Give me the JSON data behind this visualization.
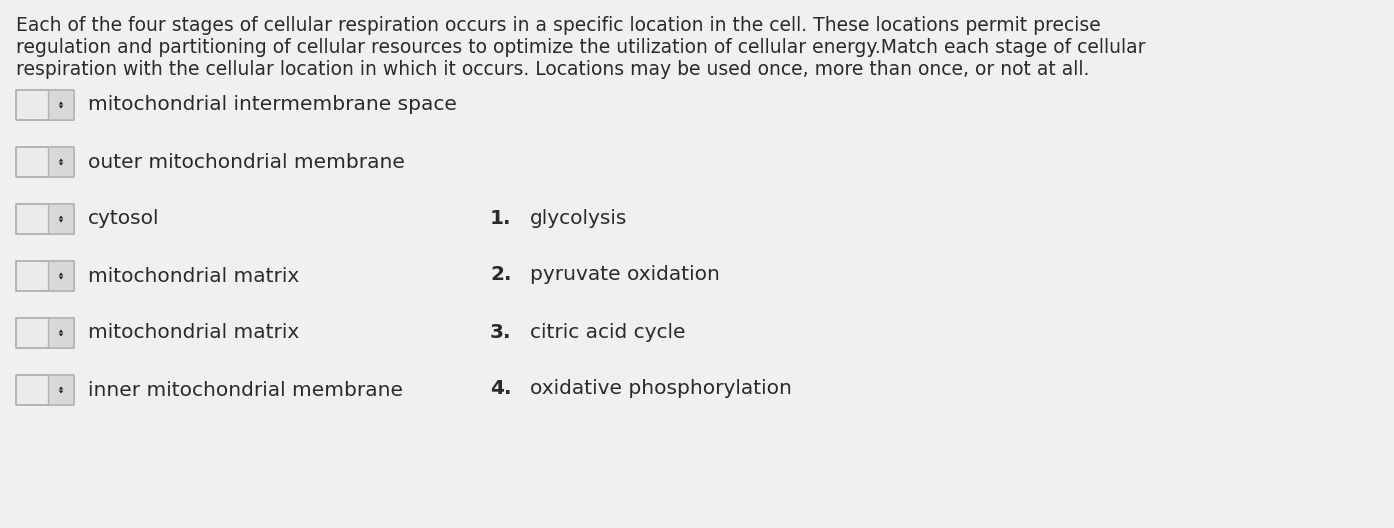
{
  "background_color": "#f0f0f0",
  "paragraph_line1": "Each of the four stages of cellular respiration occurs in a specific location in the cell. These locations permit precise",
  "paragraph_line2": "regulation and partitioning of cellular resources to optimize the utilization of cellular energy.Match each stage of cellular",
  "paragraph_line3": "respiration with the cellular location in which it occurs. Locations may be used once, more than once, or not at all.",
  "left_items": [
    "mitochondrial intermembrane space",
    "outer mitochondrial membrane",
    "cytosol",
    "mitochondrial matrix",
    "mitochondrial matrix",
    "inner mitochondrial membrane"
  ],
  "right_items_num": [
    "1.",
    "2.",
    "3.",
    "4."
  ],
  "right_items_text": [
    "glycolysis",
    "pyruvate oxidation",
    "citric acid cycle",
    "oxidative phosphorylation"
  ],
  "text_color": "#2a2a2a",
  "box_bg": "#ebebeb",
  "box_bg_right": "#d8d8d8",
  "box_border": "#b0b0b0",
  "divider_color": "#b0b0b0",
  "font_size_para": 13.5,
  "font_size_items": 14.5,
  "font_size_right": 14.5
}
